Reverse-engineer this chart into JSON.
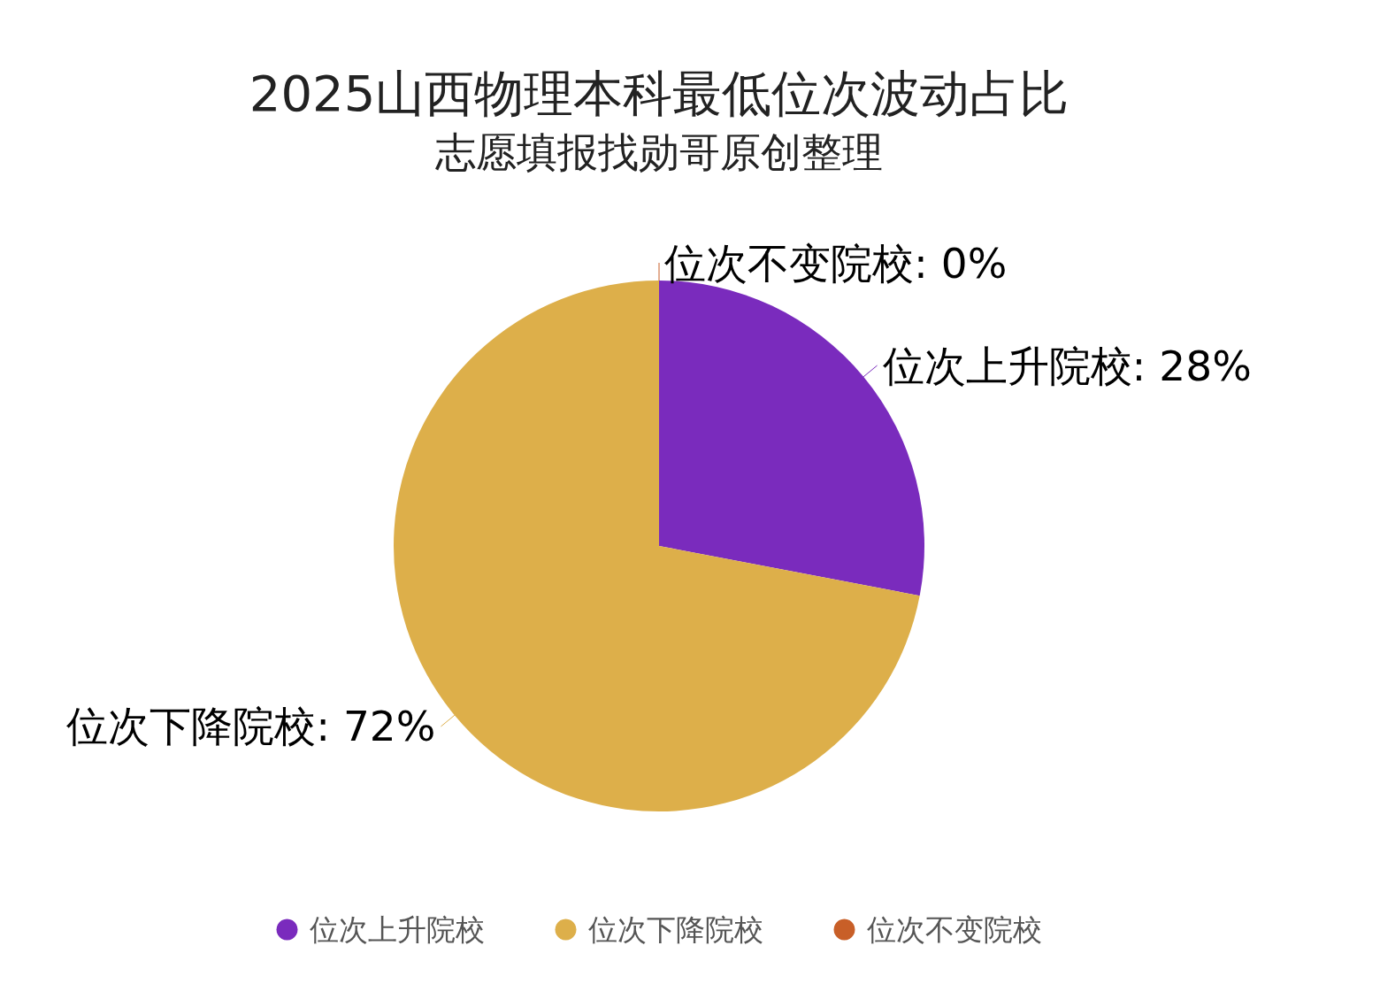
{
  "chart_data": {
    "type": "pie",
    "title": "2025山西物理本科最低位次波动占比",
    "subtitle": "志愿填报找勋哥原创整理",
    "categories": [
      "位次上升院校",
      "位次下降院校",
      "位次不变院校"
    ],
    "values": [
      28,
      72,
      0
    ],
    "colors": [
      "#7a2bbd",
      "#ddaf4a",
      "#c85f28"
    ],
    "value_labels": [
      "位次上升院校: 28%",
      "位次下降院校: 72%",
      "位次不变院校: 0%"
    ],
    "legend": "bottom"
  }
}
